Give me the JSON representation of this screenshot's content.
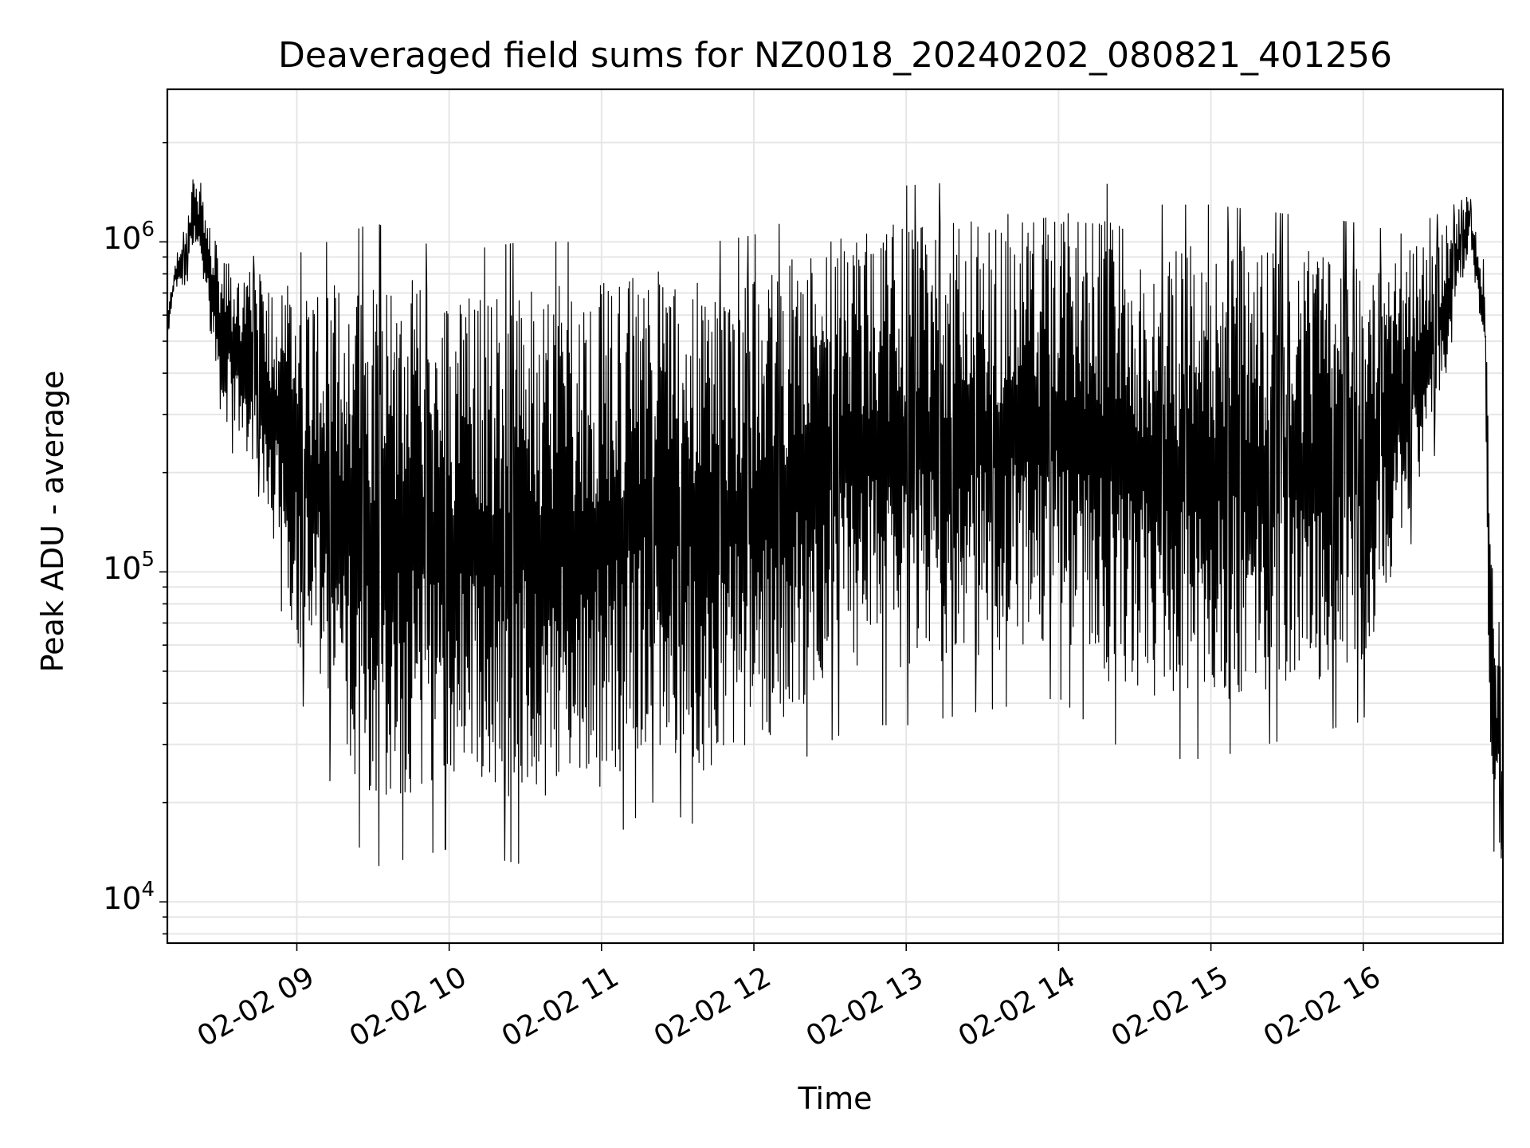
{
  "chart_data": {
    "type": "line",
    "title": "Deaveraged field sums for NZ0018_20240202_080821_401256",
    "xlabel": "Time",
    "ylabel": "Peak ADU - average",
    "y_scale": "log",
    "ylim": [
      7500,
      2900000
    ],
    "xlim": [
      "02-02 08:09",
      "02-02 16:55"
    ],
    "grid": true,
    "line_color": "#000000",
    "grid_color": "#e6e6e6",
    "y_ticks": [
      {
        "base": "10",
        "exp": "4",
        "value": 10000
      },
      {
        "base": "10",
        "exp": "5",
        "value": 100000
      },
      {
        "base": "10",
        "exp": "6",
        "value": 1000000
      }
    ],
    "x_ticks": [
      "02-02 09",
      "02-02 10",
      "02-02 11",
      "02-02 12",
      "02-02 13",
      "02-02 14",
      "02-02 15",
      "02-02 16"
    ],
    "series": [
      {
        "x_start": "02-02 08:09",
        "x_end": "02-02 16:55",
        "envelope_upper": [
          [
            "08:09",
            600000
          ],
          [
            "08:12",
            900000
          ],
          [
            "08:15",
            1000000
          ],
          [
            "08:20",
            1700000
          ],
          [
            "08:24",
            1250000
          ],
          [
            "08:30",
            900000
          ],
          [
            "08:45",
            800000
          ],
          [
            "09:00",
            750000
          ],
          [
            "09:20",
            800000
          ],
          [
            "09:30",
            850000
          ],
          [
            "10:00",
            700000
          ],
          [
            "10:30",
            750000
          ],
          [
            "11:00",
            750000
          ],
          [
            "11:20",
            850000
          ],
          [
            "11:40",
            750000
          ],
          [
            "12:00",
            800000
          ],
          [
            "12:20",
            950000
          ],
          [
            "12:40",
            1100000
          ],
          [
            "13:00",
            1150000
          ],
          [
            "13:30",
            1200000
          ],
          [
            "14:00",
            1250000
          ],
          [
            "14:20",
            1150000
          ],
          [
            "14:40",
            1000000
          ],
          [
            "15:00",
            1000000
          ],
          [
            "15:30",
            950000
          ],
          [
            "16:00",
            900000
          ],
          [
            "16:15",
            900000
          ],
          [
            "16:30",
            1100000
          ],
          [
            "16:42",
            1350000
          ],
          [
            "16:45",
            1000000
          ],
          [
            "16:48",
            800000
          ],
          [
            "16:50",
            150000
          ],
          [
            "16:52",
            70000
          ],
          [
            "16:55",
            85000
          ]
        ],
        "envelope_lower": [
          [
            "08:09",
            500000
          ],
          [
            "08:12",
            700000
          ],
          [
            "08:15",
            700000
          ],
          [
            "08:20",
            1000000
          ],
          [
            "08:24",
            700000
          ],
          [
            "08:30",
            300000
          ],
          [
            "08:45",
            200000
          ],
          [
            "09:00",
            60000
          ],
          [
            "09:20",
            25000
          ],
          [
            "09:30",
            20000
          ],
          [
            "10:00",
            22000
          ],
          [
            "10:30",
            20000
          ],
          [
            "11:00",
            22000
          ],
          [
            "11:20",
            30000
          ],
          [
            "11:40",
            25000
          ],
          [
            "12:00",
            28000
          ],
          [
            "12:20",
            40000
          ],
          [
            "12:40",
            50000
          ],
          [
            "13:00",
            50000
          ],
          [
            "13:30",
            55000
          ],
          [
            "14:00",
            60000
          ],
          [
            "14:20",
            45000
          ],
          [
            "14:40",
            40000
          ],
          [
            "15:00",
            40000
          ],
          [
            "15:30",
            45000
          ],
          [
            "16:00",
            50000
          ],
          [
            "16:15",
            120000
          ],
          [
            "16:30",
            300000
          ],
          [
            "16:42",
            1000000
          ],
          [
            "16:45",
            700000
          ],
          [
            "16:48",
            400000
          ],
          [
            "16:50",
            20000
          ],
          [
            "16:52",
            12000
          ],
          [
            "16:55",
            18000
          ]
        ]
      }
    ]
  }
}
